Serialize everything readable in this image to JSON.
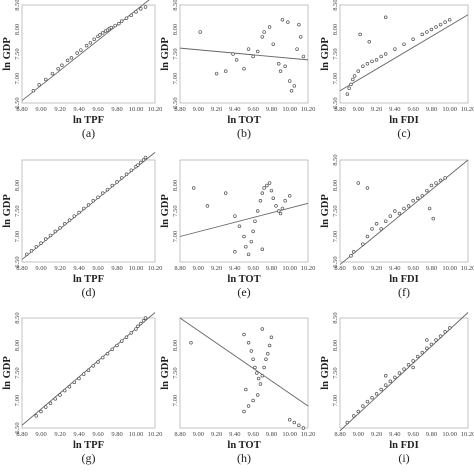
{
  "chart_data": [
    {
      "type": "scatter",
      "panel_label": "(a)",
      "xlabel": "ln TPF",
      "ylabel": "ln GDP",
      "xlim": [
        8.8,
        10.2
      ],
      "ylim": [
        6.5,
        8.5
      ],
      "xticks": [
        "8.80",
        "9.00",
        "9.20",
        "9.40",
        "9.60",
        "9.80",
        "10.00",
        "10.20"
      ],
      "yticks": [
        "6.50",
        "7.00",
        "7.50",
        "8.00",
        "8.50"
      ],
      "points": [
        [
          8.92,
          6.75
        ],
        [
          8.98,
          6.87
        ],
        [
          9.05,
          6.98
        ],
        [
          9.12,
          7.1
        ],
        [
          9.18,
          7.2
        ],
        [
          9.22,
          7.27
        ],
        [
          9.28,
          7.37
        ],
        [
          9.32,
          7.42
        ],
        [
          9.38,
          7.52
        ],
        [
          9.42,
          7.58
        ],
        [
          9.48,
          7.67
        ],
        [
          9.52,
          7.73
        ],
        [
          9.56,
          7.8
        ],
        [
          9.6,
          7.86
        ],
        [
          9.62,
          7.89
        ],
        [
          9.65,
          7.93
        ],
        [
          9.68,
          7.97
        ],
        [
          9.7,
          7.99
        ],
        [
          9.72,
          8.02
        ],
        [
          9.74,
          8.04
        ],
        [
          9.78,
          8.08
        ],
        [
          9.82,
          8.12
        ],
        [
          9.85,
          8.17
        ],
        [
          9.9,
          8.23
        ],
        [
          9.95,
          8.29
        ],
        [
          10.0,
          8.36
        ],
        [
          10.05,
          8.42
        ],
        [
          10.1,
          8.46
        ]
      ],
      "fit_line": [
        [
          8.8,
          6.55
        ],
        [
          10.2,
          8.7
        ]
      ]
    },
    {
      "type": "scatter",
      "panel_label": "(b)",
      "xlabel": "ln TOT",
      "ylabel": "ln GDP",
      "xlim": [
        8.8,
        10.2
      ],
      "ylim": [
        6.5,
        8.5
      ],
      "xticks": [
        "8.80",
        "9.00",
        "9.20",
        "9.40",
        "9.60",
        "9.80",
        "10.00",
        "10.20"
      ],
      "yticks": [
        "6.50",
        "7.00",
        "7.50",
        "8.00",
        "8.50"
      ],
      "points": [
        [
          9.02,
          7.95
        ],
        [
          9.2,
          7.1
        ],
        [
          9.3,
          7.15
        ],
        [
          9.38,
          7.5
        ],
        [
          9.42,
          7.38
        ],
        [
          9.5,
          7.2
        ],
        [
          9.55,
          7.6
        ],
        [
          9.6,
          7.45
        ],
        [
          9.65,
          7.55
        ],
        [
          9.7,
          7.85
        ],
        [
          9.72,
          7.95
        ],
        [
          9.78,
          8.05
        ],
        [
          9.82,
          7.7
        ],
        [
          9.88,
          7.3
        ],
        [
          9.9,
          7.15
        ],
        [
          9.92,
          8.2
        ],
        [
          9.95,
          7.25
        ],
        [
          9.98,
          8.15
        ],
        [
          10.0,
          6.95
        ],
        [
          10.02,
          6.75
        ],
        [
          10.05,
          6.85
        ],
        [
          10.08,
          7.6
        ],
        [
          10.1,
          8.1
        ],
        [
          10.12,
          7.85
        ],
        [
          10.15,
          7.45
        ]
      ],
      "fit_line": [
        [
          8.8,
          7.62
        ],
        [
          10.2,
          7.38
        ]
      ]
    },
    {
      "type": "scatter",
      "panel_label": "(c)",
      "xlabel": "ln FDI",
      "ylabel": "ln GDP",
      "xlim": [
        8.8,
        10.2
      ],
      "ylim": [
        6.5,
        8.5
      ],
      "xticks": [
        "8.80",
        "9.00",
        "9.20",
        "9.40",
        "9.60",
        "9.80",
        "10.00",
        "10.20"
      ],
      "yticks": [
        "6.50",
        "7.00",
        "7.50",
        "8.00",
        "8.50"
      ],
      "points": [
        [
          8.88,
          6.68
        ],
        [
          8.9,
          6.8
        ],
        [
          8.92,
          6.88
        ],
        [
          8.94,
          6.98
        ],
        [
          8.96,
          7.05
        ],
        [
          9.0,
          7.15
        ],
        [
          9.05,
          7.25
        ],
        [
          9.1,
          7.3
        ],
        [
          9.15,
          7.35
        ],
        [
          9.2,
          7.38
        ],
        [
          9.25,
          7.45
        ],
        [
          9.3,
          7.5
        ],
        [
          9.4,
          7.6
        ],
        [
          9.5,
          7.7
        ],
        [
          9.6,
          7.8
        ],
        [
          9.7,
          7.9
        ],
        [
          9.75,
          7.95
        ],
        [
          9.8,
          8.0
        ],
        [
          9.85,
          8.05
        ],
        [
          9.9,
          8.1
        ],
        [
          9.95,
          8.15
        ],
        [
          10.0,
          8.2
        ],
        [
          9.12,
          7.75
        ],
        [
          9.3,
          8.25
        ],
        [
          9.02,
          7.9
        ]
      ],
      "fit_line": [
        [
          8.8,
          6.75
        ],
        [
          10.2,
          8.3
        ]
      ]
    },
    {
      "type": "scatter",
      "panel_label": "(d)",
      "xlabel": "ln TPF",
      "ylabel": "ln GDP",
      "xlim": [
        8.8,
        10.2
      ],
      "ylim": [
        6.5,
        8.5
      ],
      "xticks": [
        "8.80",
        "9.00",
        "9.20",
        "9.40",
        "9.60",
        "9.80",
        "10.00",
        "10.20"
      ],
      "yticks": [
        "6.50",
        "7.00",
        "7.50",
        "8.00"
      ],
      "points": [
        [
          8.85,
          6.65
        ],
        [
          8.9,
          6.72
        ],
        [
          8.95,
          6.8
        ],
        [
          9.0,
          6.87
        ],
        [
          9.05,
          6.95
        ],
        [
          9.1,
          7.02
        ],
        [
          9.15,
          7.1
        ],
        [
          9.2,
          7.17
        ],
        [
          9.25,
          7.25
        ],
        [
          9.3,
          7.32
        ],
        [
          9.35,
          7.4
        ],
        [
          9.4,
          7.47
        ],
        [
          9.45,
          7.55
        ],
        [
          9.5,
          7.62
        ],
        [
          9.55,
          7.7
        ],
        [
          9.6,
          7.77
        ],
        [
          9.65,
          7.85
        ],
        [
          9.7,
          7.92
        ],
        [
          9.75,
          8.0
        ],
        [
          9.8,
          8.07
        ],
        [
          9.85,
          8.15
        ],
        [
          9.9,
          8.22
        ],
        [
          9.95,
          8.3
        ],
        [
          10.0,
          8.37
        ],
        [
          10.02,
          8.4
        ],
        [
          10.05,
          8.45
        ],
        [
          10.08,
          8.5
        ],
        [
          10.1,
          8.55
        ]
      ],
      "fit_line": [
        [
          8.8,
          6.55
        ],
        [
          10.2,
          8.65
        ]
      ]
    },
    {
      "type": "scatter",
      "panel_label": "(e)",
      "xlabel": "ln TOT",
      "ylabel": "ln GDP",
      "xlim": [
        8.8,
        10.2
      ],
      "ylim": [
        6.5,
        8.5
      ],
      "xticks": [
        "8.80",
        "9.00",
        "9.20",
        "9.40",
        "9.60",
        "9.80",
        "10.00",
        "10.20"
      ],
      "yticks": [
        "7.00",
        "7.50",
        "8.00"
      ],
      "points": [
        [
          8.95,
          7.95
        ],
        [
          9.1,
          7.6
        ],
        [
          9.3,
          7.85
        ],
        [
          9.4,
          7.4
        ],
        [
          9.45,
          7.2
        ],
        [
          9.5,
          7.0
        ],
        [
          9.52,
          6.8
        ],
        [
          9.55,
          6.65
        ],
        [
          9.58,
          6.9
        ],
        [
          9.6,
          7.1
        ],
        [
          9.62,
          7.3
        ],
        [
          9.65,
          7.5
        ],
        [
          9.68,
          7.7
        ],
        [
          9.7,
          7.85
        ],
        [
          9.72,
          7.95
        ],
        [
          9.75,
          8.0
        ],
        [
          9.78,
          8.05
        ],
        [
          9.8,
          7.9
        ],
        [
          9.82,
          7.75
        ],
        [
          9.85,
          7.6
        ],
        [
          9.88,
          7.5
        ],
        [
          9.9,
          7.45
        ],
        [
          9.92,
          7.55
        ],
        [
          9.95,
          7.7
        ],
        [
          10.0,
          7.8
        ],
        [
          9.7,
          6.75
        ],
        [
          9.4,
          6.7
        ]
      ],
      "fit_line": [
        [
          8.8,
          7.0
        ],
        [
          10.2,
          7.65
        ]
      ]
    },
    {
      "type": "scatter",
      "panel_label": "(f)",
      "xlabel": "ln FDI",
      "ylabel": "ln GDP",
      "xlim": [
        8.8,
        10.2
      ],
      "ylim": [
        6.5,
        8.5
      ],
      "xticks": [
        "8.80",
        "9.00",
        "9.20",
        "9.40",
        "9.60",
        "9.80",
        "10.00",
        "10.20"
      ],
      "yticks": [
        "6.50",
        "7.00",
        "7.50",
        "8.00",
        "8.50"
      ],
      "points": [
        [
          8.92,
          6.62
        ],
        [
          8.95,
          6.7
        ],
        [
          9.05,
          6.85
        ],
        [
          9.1,
          7.0
        ],
        [
          9.15,
          7.15
        ],
        [
          9.2,
          7.25
        ],
        [
          9.25,
          7.15
        ],
        [
          9.3,
          7.3
        ],
        [
          9.35,
          7.4
        ],
        [
          9.4,
          7.5
        ],
        [
          9.45,
          7.45
        ],
        [
          9.5,
          7.55
        ],
        [
          9.55,
          7.6
        ],
        [
          9.6,
          7.7
        ],
        [
          9.65,
          7.75
        ],
        [
          9.7,
          7.8
        ],
        [
          9.75,
          7.9
        ],
        [
          9.8,
          8.0
        ],
        [
          9.85,
          8.05
        ],
        [
          9.9,
          8.1
        ],
        [
          9.95,
          8.15
        ],
        [
          9.0,
          8.05
        ],
        [
          9.1,
          7.95
        ],
        [
          9.78,
          7.55
        ],
        [
          9.82,
          7.35
        ]
      ],
      "fit_line": [
        [
          8.8,
          6.45
        ],
        [
          10.2,
          8.5
        ]
      ]
    },
    {
      "type": "scatter",
      "panel_label": "(g)",
      "xlabel": "ln TPF",
      "ylabel": "ln GDP",
      "xlim": [
        8.8,
        10.2
      ],
      "ylim": [
        6.5,
        8.5
      ],
      "xticks": [
        "8.80",
        "9.00",
        "9.20",
        "9.40",
        "9.60",
        "9.80",
        "10.00",
        "10.20"
      ],
      "yticks": [
        "6.50",
        "7.00",
        "7.50",
        "8.00",
        "8.50"
      ],
      "points": [
        [
          8.95,
          6.72
        ],
        [
          9.0,
          6.8
        ],
        [
          9.05,
          6.88
        ],
        [
          9.1,
          6.95
        ],
        [
          9.15,
          7.03
        ],
        [
          9.2,
          7.1
        ],
        [
          9.25,
          7.18
        ],
        [
          9.3,
          7.25
        ],
        [
          9.35,
          7.33
        ],
        [
          9.4,
          7.4
        ],
        [
          9.45,
          7.48
        ],
        [
          9.5,
          7.55
        ],
        [
          9.55,
          7.63
        ],
        [
          9.6,
          7.7
        ],
        [
          9.65,
          7.78
        ],
        [
          9.7,
          7.85
        ],
        [
          9.75,
          7.93
        ],
        [
          9.8,
          8.0
        ],
        [
          9.85,
          8.08
        ],
        [
          9.9,
          8.15
        ],
        [
          9.95,
          8.23
        ],
        [
          10.0,
          8.3
        ],
        [
          10.02,
          8.35
        ],
        [
          10.05,
          8.4
        ],
        [
          10.08,
          8.45
        ],
        [
          10.1,
          8.5
        ]
      ],
      "fit_line": [
        [
          8.8,
          6.55
        ],
        [
          10.2,
          8.6
        ]
      ]
    },
    {
      "type": "scatter",
      "panel_label": "(h)",
      "xlabel": "ln TOT",
      "ylabel": "ln GDP",
      "xlim": [
        8.8,
        10.2
      ],
      "ylim": [
        6.5,
        8.5
      ],
      "xticks": [
        "8.80",
        "9.00",
        "9.20",
        "9.40",
        "9.60",
        "9.80",
        "10.00",
        "10.20"
      ],
      "yticks": [
        "7.00",
        "7.50",
        "8.00"
      ],
      "points": [
        [
          8.92,
          8.05
        ],
        [
          9.5,
          8.2
        ],
        [
          9.55,
          8.05
        ],
        [
          9.58,
          7.9
        ],
        [
          9.6,
          7.75
        ],
        [
          9.62,
          7.6
        ],
        [
          9.64,
          7.5
        ],
        [
          9.66,
          7.4
        ],
        [
          9.68,
          7.3
        ],
        [
          9.7,
          7.45
        ],
        [
          9.72,
          7.6
        ],
        [
          9.74,
          7.75
        ],
        [
          9.76,
          7.85
        ],
        [
          9.78,
          8.0
        ],
        [
          9.8,
          8.15
        ],
        [
          9.65,
          7.1
        ],
        [
          9.6,
          7.0
        ],
        [
          9.55,
          6.9
        ],
        [
          9.5,
          6.8
        ],
        [
          9.52,
          7.2
        ],
        [
          10.0,
          6.65
        ],
        [
          10.05,
          6.6
        ],
        [
          10.1,
          6.55
        ],
        [
          10.15,
          6.5
        ],
        [
          9.7,
          8.3
        ]
      ],
      "fit_line": [
        [
          8.8,
          8.5
        ],
        [
          10.2,
          6.9
        ]
      ]
    },
    {
      "type": "scatter",
      "panel_label": "(i)",
      "xlabel": "ln FDI",
      "ylabel": "ln GDP",
      "xlim": [
        8.8,
        10.2
      ],
      "ylim": [
        6.5,
        8.5
      ],
      "xticks": [
        "8.80",
        "9.00",
        "9.20",
        "9.40",
        "9.60",
        "9.80",
        "10.00",
        "10.20"
      ],
      "yticks": [
        "7.00",
        "7.50",
        "8.00",
        "8.50"
      ],
      "points": [
        [
          8.88,
          6.6
        ],
        [
          8.95,
          6.72
        ],
        [
          9.0,
          6.8
        ],
        [
          9.05,
          6.9
        ],
        [
          9.1,
          6.98
        ],
        [
          9.15,
          7.05
        ],
        [
          9.2,
          7.12
        ],
        [
          9.25,
          7.2
        ],
        [
          9.3,
          7.28
        ],
        [
          9.35,
          7.35
        ],
        [
          9.4,
          7.42
        ],
        [
          9.45,
          7.5
        ],
        [
          9.5,
          7.57
        ],
        [
          9.55,
          7.65
        ],
        [
          9.6,
          7.72
        ],
        [
          9.65,
          7.8
        ],
        [
          9.7,
          7.87
        ],
        [
          9.75,
          7.95
        ],
        [
          9.8,
          8.02
        ],
        [
          9.85,
          8.1
        ],
        [
          9.9,
          8.17
        ],
        [
          9.95,
          8.25
        ],
        [
          10.0,
          8.32
        ],
        [
          9.3,
          7.45
        ],
        [
          9.6,
          7.6
        ],
        [
          9.75,
          8.1
        ]
      ],
      "fit_line": [
        [
          8.8,
          6.45
        ],
        [
          10.2,
          8.6
        ]
      ]
    }
  ]
}
